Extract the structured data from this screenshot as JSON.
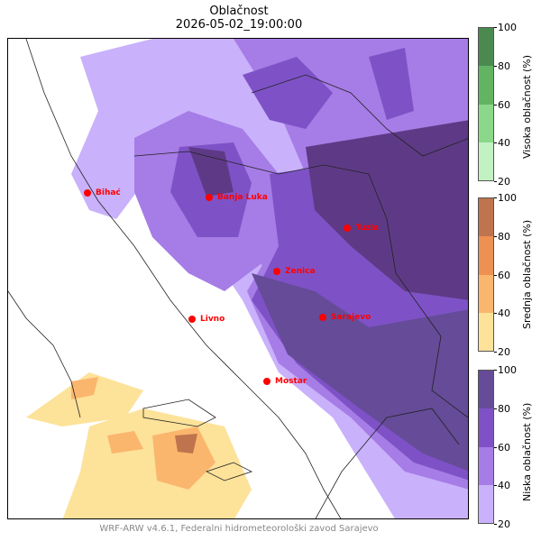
{
  "title": "Oblačnost",
  "subtitle": "2026-05-02_19:00:00",
  "footer": "WRF-ARW v4.6.1, Federalni hidrometeorološki zavod Sarajevo",
  "cities": [
    {
      "name": "Bihać"
    },
    {
      "name": "Banja Luka"
    },
    {
      "name": "Tuzla"
    },
    {
      "name": "Zenica"
    },
    {
      "name": "Livno"
    },
    {
      "name": "Sarajevo"
    },
    {
      "name": "Mostar"
    }
  ],
  "colorbars": [
    {
      "label": "Visoka oblačnost (%)",
      "ticks": [
        "100",
        "80",
        "60",
        "40",
        "20"
      ],
      "colors": [
        "#4a8a4f",
        "#62b462",
        "#8bd88b",
        "#c2f2c2"
      ]
    },
    {
      "label": "Srednja oblačnost (%)",
      "ticks": [
        "100",
        "80",
        "60",
        "40",
        "20"
      ],
      "colors": [
        "#bf744e",
        "#ec9151",
        "#fbb66d",
        "#fde29a"
      ]
    },
    {
      "label": "Niska oblačnost (%)",
      "ticks": [
        "100",
        "80",
        "60",
        "40",
        "20"
      ],
      "colors": [
        "#654b98",
        "#7e52c6",
        "#a67ce6",
        "#c9b1fb"
      ]
    }
  ]
}
